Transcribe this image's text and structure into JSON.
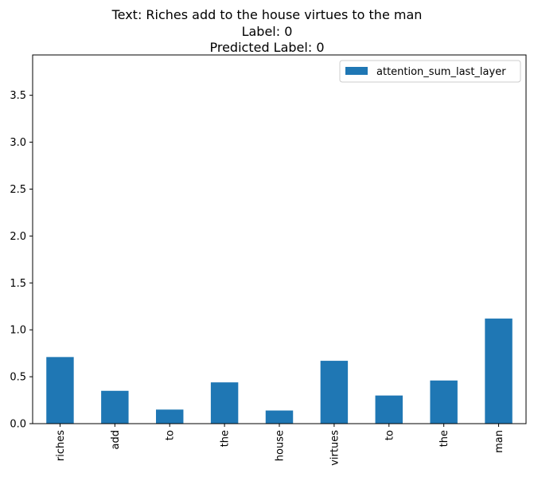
{
  "chart_data": {
    "type": "bar",
    "title_lines": [
      "Text: Riches add to the house virtues to the man",
      "Label: 0",
      "Predicted Label: 0"
    ],
    "categories": [
      "riches",
      "add",
      "to",
      "the",
      "house",
      "virtues",
      "to",
      "the",
      "man"
    ],
    "series": [
      {
        "name": "attention_sum_last_layer",
        "color": "#1f77b4",
        "values": [
          0.71,
          0.35,
          0.15,
          0.44,
          0.14,
          0.67,
          0.3,
          0.46,
          1.12
        ]
      }
    ],
    "ylim": [
      0,
      3.93
    ],
    "yticks": [
      0.0,
      0.5,
      1.0,
      1.5,
      2.0,
      2.5,
      3.0,
      3.5
    ],
    "ytick_labels": [
      "0.0",
      "0.5",
      "1.0",
      "1.5",
      "2.0",
      "2.5",
      "3.0",
      "3.5"
    ],
    "legend_position": "top-right",
    "grid": false
  }
}
